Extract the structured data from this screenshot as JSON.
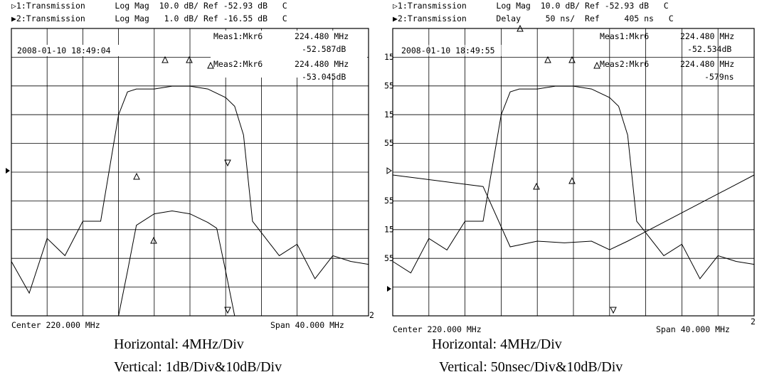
{
  "panels": [
    {
      "header_line1": "▷1:Transmission      Log Mag  10.0 dB/ Ref -52.93 dB   C",
      "header_line2": "▶2:Transmission      Log Mag   1.0 dB/ Ref -16.55 dB   C",
      "timestamp": "2008-01-10 18:49:04",
      "meas1_label": "Meas1:Mkr6",
      "meas1_freq": "224.480 MHz",
      "meas1_value": "-52.587dB",
      "meas2_label": "Meas2:Mkr6",
      "meas2_freq": "224.480 MHz",
      "meas2_value": "-53.045dB",
      "footer_center": "Center 220.000 MHz",
      "footer_span": "Span 40.000 MHz",
      "caption_horizontal": "Horizontal: 4MHz/Div",
      "caption_vertical": "Vertical: 1dB/Div&10dB/Div",
      "left_ticks": [],
      "right_label": "2"
    },
    {
      "header_line1": "▷1:Transmission      Log Mag  10.0 dB/ Ref -52.93 dB   C",
      "header_line2": "▶2:Transmission      Delay     50 ns/  Ref     405 ns   C",
      "timestamp": "2008-01-10 18:49:55",
      "meas1_label": "Meas1:Mkr6",
      "meas1_freq": "224.480 MHz",
      "meas1_value": "-52.534dB",
      "meas2_label": "Meas2:Mkr6",
      "meas2_freq": "224.480 MHz",
      "meas2_value": "-579ns",
      "footer_center": "Center 220.000 MHz",
      "footer_span": "Span 40.000 MHz",
      "caption_horizontal": "Horizontal: 4MHz/Div",
      "caption_vertical": "Vertical: 50nsec/Div&10dB/Div",
      "left_ticks": [
        "15",
        "55",
        "15",
        "55",
        "",
        "55",
        "15",
        "55"
      ],
      "right_label": "2"
    }
  ],
  "chart_data": [
    {
      "type": "line",
      "x_center_mhz": 220,
      "x_span_mhz": 40,
      "series": [
        {
          "values": [
            [
              200,
              -84
            ],
            [
              202,
              -95
            ],
            [
              204,
              -76
            ],
            [
              206,
              -82
            ],
            [
              208,
              -70
            ],
            [
              210,
              -70
            ],
            [
              212,
              -33
            ],
            [
              213,
              -25
            ],
            [
              214,
              -24
            ],
            [
              216,
              -24
            ],
            [
              218,
              -23
            ],
            [
              220,
              -23
            ],
            [
              222,
              -24
            ],
            [
              224,
              -27
            ],
            [
              225,
              -30
            ],
            [
              226,
              -40
            ],
            [
              227,
              -70
            ],
            [
              228,
              -74
            ],
            [
              230,
              -82
            ],
            [
              232,
              -78
            ],
            [
              234,
              -90
            ],
            [
              236,
              -82
            ],
            [
              238,
              -84
            ],
            [
              240,
              -85
            ]
          ]
        },
        {
          "values": [
            [
              200,
              -28
            ],
            [
              202,
              -28
            ],
            [
              204,
              -28
            ],
            [
              206,
              -28
            ],
            [
              208,
              -28
            ],
            [
              210,
              -28
            ],
            [
              212,
              -28
            ],
            [
              213,
              -20
            ],
            [
              214,
              -18.4
            ],
            [
              216,
              -18
            ],
            [
              218,
              -17.9
            ],
            [
              220,
              -18
            ],
            [
              222,
              -18.3
            ],
            [
              223,
              -18.5
            ],
            [
              224,
              -20
            ],
            [
              225,
              -23
            ],
            [
              226,
              -28
            ],
            [
              240,
              -28
            ]
          ]
        }
      ]
    },
    {
      "type": "line",
      "x_center_mhz": 220,
      "x_span_mhz": 40,
      "series": [
        {
          "values": [
            [
              200,
              -84
            ],
            [
              202,
              -88
            ],
            [
              204,
              -76
            ],
            [
              206,
              -80
            ],
            [
              208,
              -70
            ],
            [
              210,
              -70
            ],
            [
              212,
              -33
            ],
            [
              213,
              -25
            ],
            [
              214,
              -24
            ],
            [
              216,
              -24
            ],
            [
              218,
              -23
            ],
            [
              220,
              -23
            ],
            [
              222,
              -24
            ],
            [
              224,
              -27
            ],
            [
              225,
              -30
            ],
            [
              226,
              -40
            ],
            [
              227,
              -70
            ],
            [
              228,
              -74
            ],
            [
              230,
              -82
            ],
            [
              232,
              -78
            ],
            [
              234,
              -90
            ],
            [
              236,
              -82
            ],
            [
              238,
              -84
            ],
            [
              240,
              -85
            ]
          ]
        },
        {
          "values": [
            [
              200,
              400
            ],
            [
              210,
              380
            ],
            [
              213,
              275
            ],
            [
              216,
              285
            ],
            [
              219,
              282
            ],
            [
              222,
              285
            ],
            [
              224,
              270
            ],
            [
              226,
              285
            ],
            [
              240,
              400
            ]
          ]
        }
      ]
    }
  ]
}
